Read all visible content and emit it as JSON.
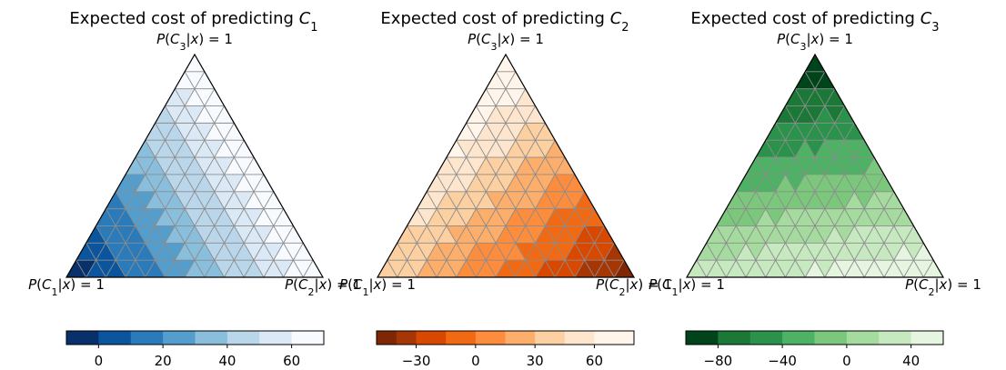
{
  "chart_data": [
    {
      "type": "ternary-contour",
      "title": "Expected cost of predicting C",
      "title_sub": "1",
      "corner_labels": {
        "top": "P(C_3|x) = 1",
        "left": "P(C_1|x) = 1",
        "right": "P(C_2|x) = 1"
      },
      "cost_at_vertices": {
        "C1": -10,
        "C2": 70,
        "C3": 70
      },
      "levels": [
        -10,
        0,
        10,
        20,
        30,
        40,
        50,
        60,
        70
      ],
      "colormap": [
        "#08306b",
        "#0b559f",
        "#2b7bba",
        "#539ecd",
        "#89bedc",
        "#bad6eb",
        "#dbe9f6",
        "#f7fbff"
      ],
      "colorbar": {
        "ticks": [
          0,
          20,
          40,
          60
        ],
        "tick_labels": [
          "0",
          "20",
          "40",
          "60"
        ],
        "range": [
          -10,
          70
        ]
      }
    },
    {
      "type": "ternary-contour",
      "title": "Expected cost of predicting C",
      "title_sub": "2",
      "corner_labels": {
        "top": "P(C_3|x) = 1",
        "left": "P(C_1|x) = 1",
        "right": "P(C_2|x) = 1"
      },
      "cost_at_vertices": {
        "C1": 40,
        "C2": -50,
        "C3": 80
      },
      "levels": [
        -50,
        -40,
        -30,
        -15,
        0,
        15,
        30,
        45,
        60,
        80
      ],
      "colormap": [
        "#7f2704",
        "#a63603",
        "#d94801",
        "#f16913",
        "#fd8d3c",
        "#fdae6b",
        "#fdd0a2",
        "#fee6ce",
        "#fff5eb"
      ],
      "colorbar": {
        "ticks": [
          -30,
          0,
          30,
          60
        ],
        "tick_labels": [
          "−30",
          "0",
          "30",
          "60"
        ],
        "range": [
          -50,
          80
        ]
      }
    },
    {
      "type": "ternary-contour",
      "title": "Expected cost of predicting C",
      "title_sub": "3",
      "corner_labels": {
        "top": "P(C_3|x) = 1",
        "left": "P(C_1|x) = 1",
        "right": "P(C_2|x) = 1"
      },
      "cost_at_vertices": {
        "C1": 30,
        "C2": 60,
        "C3": -100
      },
      "levels": [
        -100,
        -80,
        -60,
        -40,
        -20,
        0,
        20,
        40,
        60
      ],
      "colormap": [
        "#00441b",
        "#1b7837",
        "#2a924a",
        "#4eb264",
        "#7bc87c",
        "#a5db9f",
        "#c7e9c0",
        "#e5f5e0",
        "#f7fcf5"
      ],
      "colorbar": {
        "ticks": [
          -80,
          -40,
          0,
          40
        ],
        "tick_labels": [
          "−80",
          "−40",
          "0",
          "40"
        ],
        "range": [
          -100,
          60
        ]
      }
    }
  ]
}
